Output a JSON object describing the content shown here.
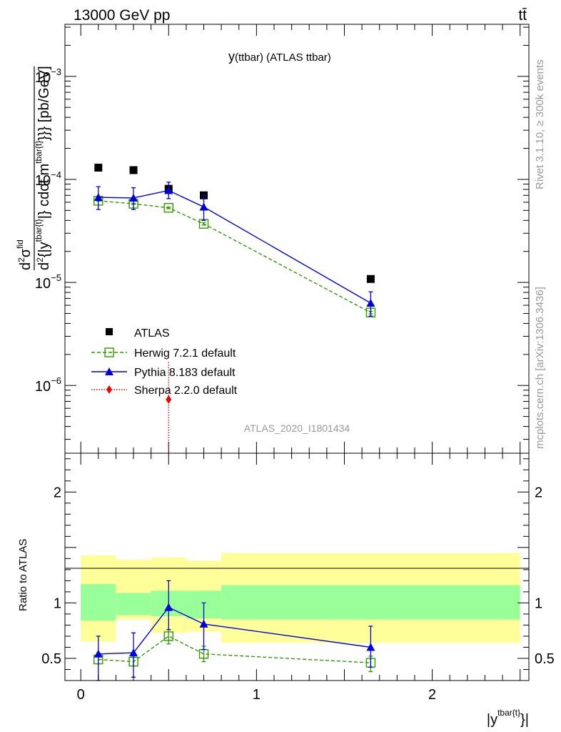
{
  "header": {
    "left_title": "13000 GeV pp",
    "right_title": "tt̄"
  },
  "side_labels": {
    "rivet": "Rivet 3.1.10, ≥ 300k events",
    "mcplots": "mcplots.cern.ch [arXiv:1306.3436]"
  },
  "colors": {
    "atlas": "#000000",
    "herwig": "#339900",
    "pythia": "#0000dd",
    "sherpa": "#ee0000",
    "band_outer": "#ffff99",
    "band_inner": "#99ff99",
    "analysis_label": "#999999"
  },
  "chart_data": [
    {
      "id": "main",
      "type": "scatter",
      "title": "y(ttbar) (ATLAS ttbar)",
      "title_main": "y",
      "title_sub": "(ttbar) (ATLAS ttbar)",
      "analysis_label": "ATLAS_2020_I1801434",
      "ylabel_parts": {
        "d1": "d",
        "exp2": "2",
        "sigma": "σ",
        "fid": "fid",
        "d2": "d",
        "exp2b": "2",
        "open": "{|y",
        "ysup": "tbar{t}",
        "mid": "|} cdot m",
        "msup": "tbar{t}",
        "close": "}}} [pb/GeV]"
      },
      "yscale": "log",
      "ylim": [
        2.2e-07,
        0.0032
      ],
      "xlim": [
        -0.09,
        2.55
      ],
      "y_ticks": [
        {
          "value": 1e-06,
          "base": "10",
          "exp": "−6"
        },
        {
          "value": 1e-05,
          "base": "10",
          "exp": "−5"
        },
        {
          "value": 0.0001,
          "base": "10",
          "exp": "−4"
        },
        {
          "value": 0.001,
          "base": "10",
          "exp": "−3"
        }
      ],
      "series": [
        {
          "name": "ATLAS",
          "style": "data",
          "x": [
            0.1,
            0.3,
            0.5,
            0.7,
            1.65
          ],
          "y": [
            0.00013,
            0.000123,
            8.1e-05,
            7e-05,
            1.08e-05
          ]
        },
        {
          "name": "Herwig 7.2.1 default",
          "style": "herwig",
          "x": [
            0.1,
            0.3,
            0.5,
            0.7,
            1.65
          ],
          "y": [
            6.2e-05,
            5.8e-05,
            5.3e-05,
            3.7e-05,
            5.1e-06
          ],
          "err": [
            6e-07,
            6e-07,
            1e-06,
            1e-06,
            1.5e-07
          ]
        },
        {
          "name": "Pythia 8.183 default",
          "style": "pythia",
          "x": [
            0.1,
            0.3,
            0.5,
            0.7,
            1.65
          ],
          "y": [
            6.7e-05,
            6.6e-05,
            7.8e-05,
            5.4e-05,
            6.3e-06
          ],
          "err_low": [
            1.6e-05,
            1.5e-05,
            1.3e-05,
            1.4e-05,
            1.6e-06
          ],
          "err_high": [
            1.8e-05,
            1.7e-05,
            1.6e-05,
            1.6e-05,
            1.8e-06
          ]
        },
        {
          "name": "Sherpa 2.2.0 default",
          "style": "sherpa",
          "x": [
            0.5
          ],
          "y": [
            7.3e-07
          ],
          "err_low": [
            7.2e-07
          ],
          "err_high": [
            1e-06
          ]
        }
      ],
      "legend": [
        "ATLAS",
        "Herwig 7.2.1 default",
        "Pythia 8.183 default",
        "Sherpa 2.2.0 default"
      ],
      "legend_position": "lower-left"
    },
    {
      "id": "ratio",
      "type": "line",
      "ylabel": "Ratio to ATLAS",
      "xlabel_base": "|y",
      "xlabel_sup": "tbar{t}",
      "xlabel_close": "}|",
      "ylim": [
        0.3,
        2.35
      ],
      "xlim": [
        -0.09,
        2.55
      ],
      "y_ticks": [
        {
          "value": 0.5,
          "label": "0.5"
        },
        {
          "value": 1,
          "label": "1"
        },
        {
          "value": 2,
          "label": "2"
        }
      ],
      "x_ticks": [
        {
          "value": 0,
          "label": "0"
        },
        {
          "value": 1,
          "label": "1"
        },
        {
          "value": 2,
          "label": "2"
        }
      ],
      "bands": [
        {
          "x0": 0.0,
          "x1": 0.2,
          "outer": [
            0.65,
            1.43
          ],
          "inner": [
            0.84,
            1.17
          ]
        },
        {
          "x0": 0.2,
          "x1": 0.4,
          "outer": [
            0.85,
            1.39
          ],
          "inner": [
            0.89,
            1.09
          ]
        },
        {
          "x0": 0.4,
          "x1": 0.6,
          "outer": [
            0.73,
            1.41
          ],
          "inner": [
            0.88,
            1.11
          ]
        },
        {
          "x0": 0.6,
          "x1": 0.8,
          "outer": [
            0.74,
            1.38
          ],
          "inner": [
            0.86,
            1.11
          ]
        },
        {
          "x0": 0.8,
          "x1": 2.5,
          "outer": [
            0.64,
            1.45
          ],
          "inner": [
            0.85,
            1.16
          ]
        }
      ],
      "series": [
        {
          "name": "Herwig 7.2.1 default",
          "style": "herwig",
          "x": [
            0.1,
            0.3,
            0.5,
            0.7,
            1.65
          ],
          "y": [
            0.49,
            0.47,
            0.7,
            0.54,
            0.46
          ],
          "err_low": [
            0.04,
            0.04,
            0.07,
            0.07,
            0.08
          ],
          "err_high": [
            0.04,
            0.04,
            0.06,
            0.07,
            0.06
          ]
        },
        {
          "name": "Pythia 8.183 default",
          "style": "pythia",
          "x": [
            0.1,
            0.3,
            0.5,
            0.7,
            1.65
          ],
          "y": [
            0.54,
            0.55,
            0.96,
            0.81,
            0.6
          ],
          "err_low": [
            0.24,
            0.22,
            0.2,
            0.23,
            0.18
          ],
          "err_high": [
            0.16,
            0.18,
            0.24,
            0.19,
            0.19
          ]
        }
      ]
    }
  ]
}
